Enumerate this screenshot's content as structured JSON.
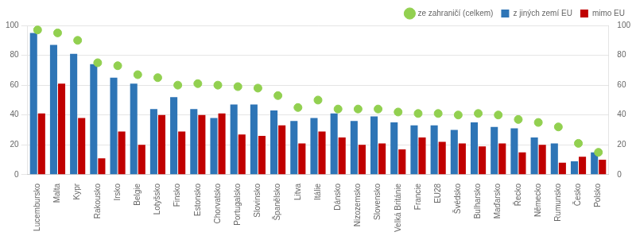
{
  "chart_data": {
    "type": "bar",
    "categories": [
      "Lucembursko",
      "Malta",
      "Kypr",
      "Rakousko",
      "Irsko",
      "Belgie",
      "Lotyšsko",
      "Finsko",
      "Estonsko",
      "Chorvatsko",
      "Portugalsko",
      "Slovinsko",
      "Španělsko",
      "Litva",
      "Itálie",
      "Dánsko",
      "Nizozemsko",
      "Slovensko",
      "Velká Británie",
      "Francie",
      "EU28",
      "Švédsko",
      "Bulharsko",
      "Maďarsko",
      "Řecko",
      "Německo",
      "Rumunsko",
      "Česko",
      "Polsko"
    ],
    "series": [
      {
        "name": "z jiných zemí EU",
        "type": "bar",
        "color": "#2E75B6",
        "values": [
          95,
          87,
          81,
          74,
          65,
          61,
          44,
          52,
          44,
          38,
          47,
          47,
          43,
          36,
          38,
          41,
          36,
          39,
          35,
          33,
          33,
          30,
          35,
          32,
          31,
          25,
          21,
          9,
          15
        ]
      },
      {
        "name": "mimo EU",
        "type": "bar",
        "color": "#C00000",
        "values": [
          41,
          61,
          38,
          11,
          29,
          20,
          40,
          29,
          40,
          41,
          27,
          26,
          33,
          21,
          29,
          25,
          20,
          21,
          17,
          25,
          22,
          21,
          19,
          21,
          15,
          20,
          8,
          12,
          10
        ]
      },
      {
        "name": "ze zahraničí (celkem)",
        "type": "scatter",
        "marker": "circle",
        "axis": "y2",
        "color": "#92D050",
        "values": [
          97,
          95,
          90,
          75,
          73,
          67,
          65,
          60,
          61,
          60,
          59,
          58,
          53,
          45,
          50,
          44,
          44,
          44,
          42,
          41,
          41,
          40,
          41,
          40,
          37,
          35,
          32,
          21,
          15
        ]
      }
    ],
    "ylim": [
      0,
      100
    ],
    "yticks": [
      0,
      20,
      40,
      60,
      80,
      100
    ],
    "y2lim": [
      0,
      100
    ],
    "y2ticks": [
      0,
      20,
      40,
      60,
      80,
      100
    ],
    "grid": true,
    "legend": "upper right"
  }
}
